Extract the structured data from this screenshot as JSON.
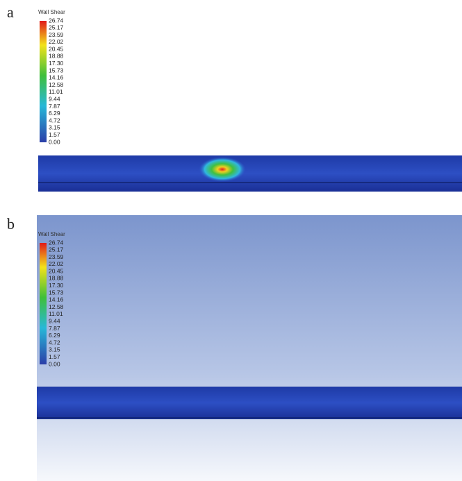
{
  "panels": [
    {
      "label": "a",
      "legend_title": "Wall Shear",
      "legend_ticks": [
        "26.74",
        "25.17",
        "23.59",
        "22.02",
        "20.45",
        "18.88",
        "17.30",
        "15.73",
        "14.16",
        "12.58",
        "11.01",
        "9.44",
        "7.87",
        "6.29",
        "4.72",
        "3.15",
        "1.57",
        "0.00"
      ]
    },
    {
      "label": "b",
      "legend_title": "Wall Shear",
      "legend_ticks": [
        "26.74",
        "25.17",
        "23.59",
        "22.02",
        "20.45",
        "18.88",
        "17.30",
        "15.73",
        "14.16",
        "12.58",
        "11.01",
        "9.44",
        "7.87",
        "6.29",
        "4.72",
        "3.15",
        "1.57",
        "0.00"
      ]
    }
  ]
}
